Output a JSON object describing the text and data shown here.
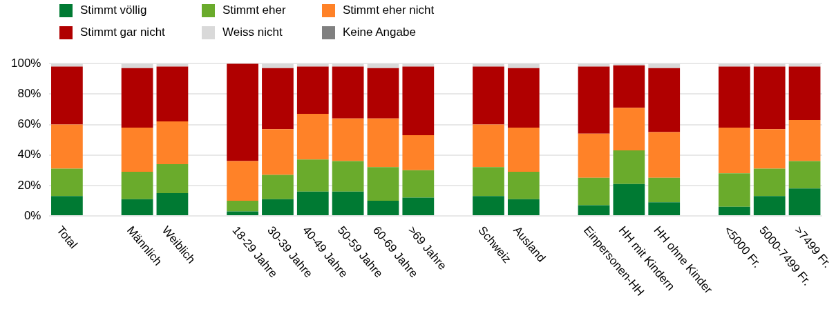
{
  "chart_data": {
    "type": "bar",
    "stacked": true,
    "legend": "top left",
    "grid": "y",
    "categories": [
      "Total",
      null,
      "Männlich",
      "Weiblich",
      null,
      "18-29 Jahre",
      "30-39 Jahre",
      "40-49 Jahre",
      "50-59 Jahre",
      "60-69 Jahre",
      ">69 Jahre",
      null,
      "Schweiz",
      "Ausland",
      null,
      "Einpersonen-HH",
      "HH mit Kindern",
      "HH ohne Kinder",
      null,
      "<5000 Fr.",
      "5000-7499 Fr.",
      ">7499 Fr."
    ],
    "ylim": [
      0,
      100
    ],
    "yticks": [
      {
        "value": 0,
        "label": "0%"
      },
      {
        "value": 20,
        "label": "20%"
      },
      {
        "value": 40,
        "label": "40%"
      },
      {
        "value": 60,
        "label": "60%"
      },
      {
        "value": 80,
        "label": "80%"
      },
      {
        "value": 100,
        "label": "100%"
      }
    ],
    "series": [
      {
        "name": "Stimmt völlig",
        "color": "#007a33",
        "values": [
          13,
          null,
          11,
          15,
          null,
          3,
          11,
          16,
          16,
          10,
          12,
          null,
          13,
          11,
          null,
          7,
          21,
          9,
          null,
          6,
          13,
          18
        ]
      },
      {
        "name": "Stimmt eher",
        "color": "#6aab2c",
        "values": [
          18,
          null,
          18,
          19,
          null,
          7,
          16,
          21,
          20,
          22,
          18,
          null,
          19,
          18,
          null,
          18,
          22,
          16,
          null,
          22,
          18,
          18
        ]
      },
      {
        "name": "Stimmt eher nicht",
        "color": "#ff8228",
        "values": [
          29,
          null,
          29,
          28,
          null,
          26,
          30,
          30,
          28,
          32,
          23,
          null,
          28,
          29,
          null,
          29,
          28,
          30,
          null,
          30,
          26,
          27
        ]
      },
      {
        "name": "Stimmt gar nicht",
        "color": "#b00000",
        "values": [
          38,
          null,
          39,
          36,
          null,
          64,
          40,
          31,
          34,
          33,
          45,
          null,
          38,
          39,
          null,
          44,
          27.8,
          42,
          null,
          40,
          41,
          35
        ]
      },
      {
        "name": "Weiss nicht",
        "color": "#d9d9d9",
        "values": [
          2,
          null,
          3,
          2,
          null,
          0,
          3,
          2,
          2,
          3,
          2,
          null,
          2,
          3,
          null,
          2,
          1.2,
          3,
          null,
          2,
          2,
          2
        ]
      },
      {
        "name": "Keine Angabe",
        "color": "#808080",
        "values": [
          0,
          null,
          0,
          0,
          null,
          0,
          0,
          0,
          0,
          0,
          0,
          null,
          0,
          0,
          null,
          0,
          0,
          0,
          null,
          0,
          0,
          0
        ]
      }
    ]
  }
}
